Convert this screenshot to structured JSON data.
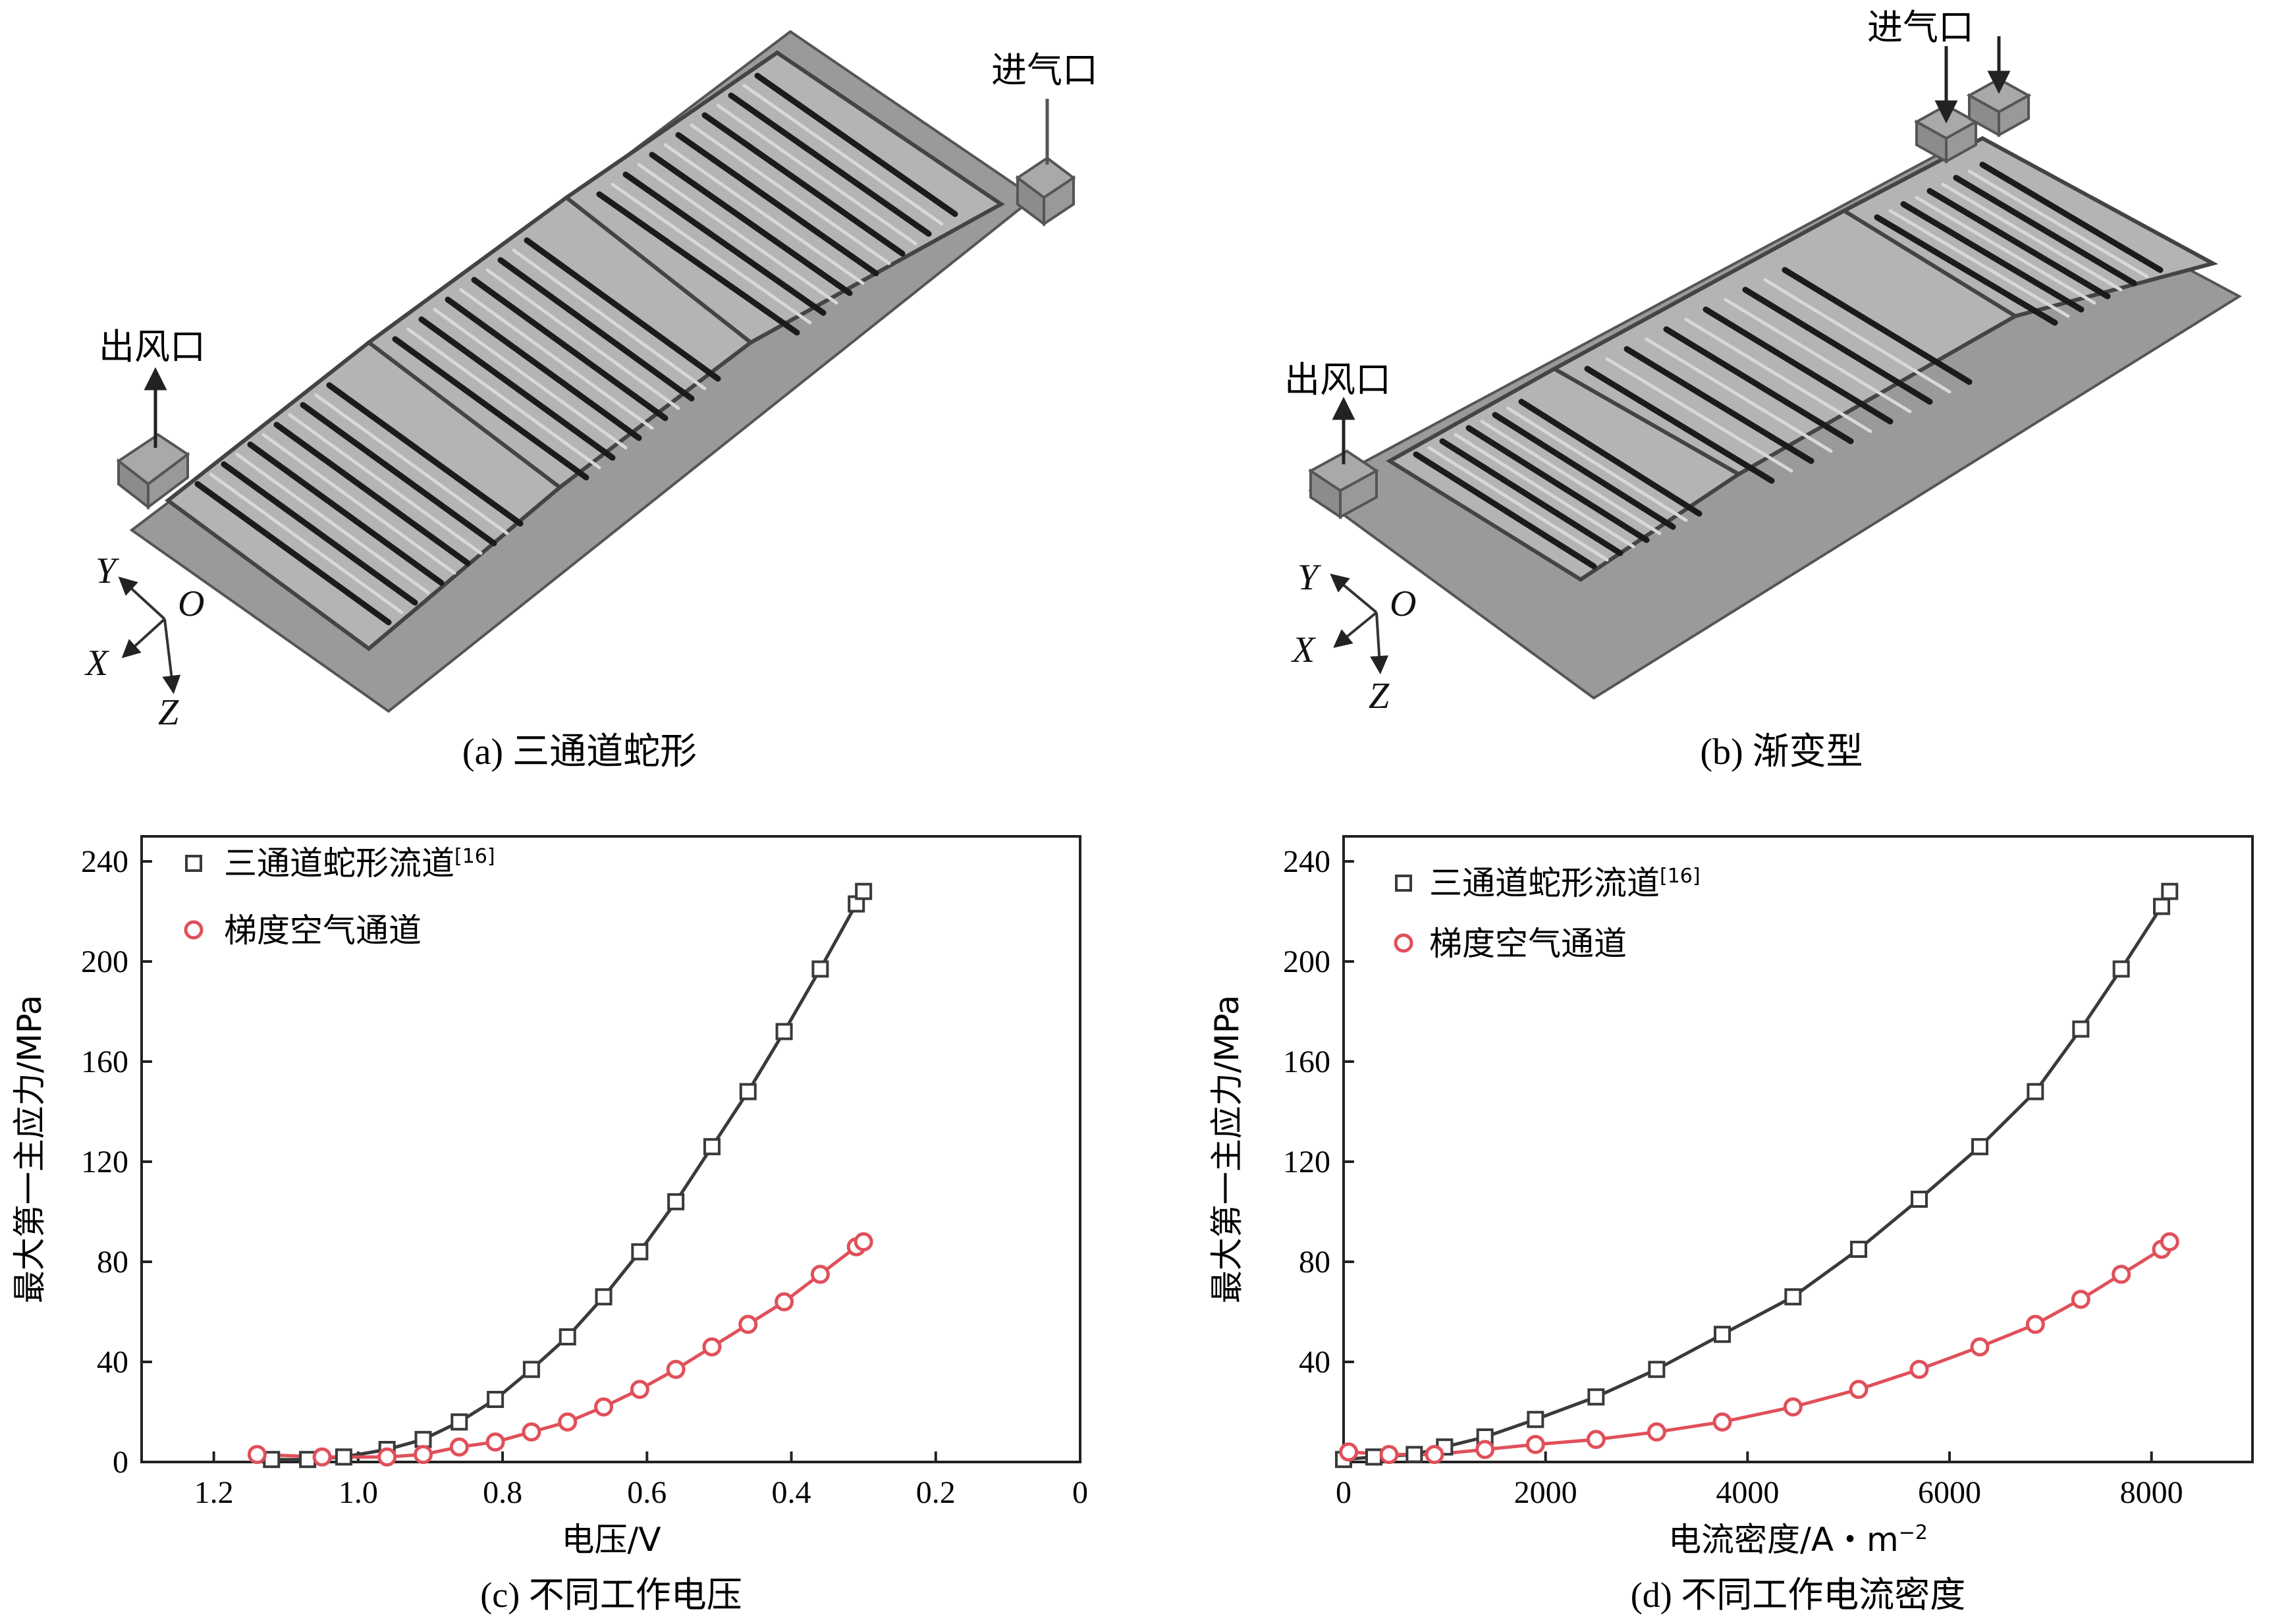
{
  "panel_a": {
    "caption": "(a) 三通道蛇形",
    "inlet_label": "进气口",
    "outlet_label": "出风口",
    "axes": {
      "y": "Y",
      "o": "O",
      "x": "X",
      "z": "Z"
    }
  },
  "panel_b": {
    "caption": "(b) 渐变型",
    "inlet_label": "进气口",
    "outlet_label": "出风口",
    "axes": {
      "y": "Y",
      "o": "O",
      "x": "X",
      "z": "Z"
    }
  },
  "chart_data": [
    {
      "type": "line",
      "caption": "(c) 不同工作电压",
      "xlabel": "电压/V",
      "ylabel": "最大第一主应力/MPa",
      "xlim": [
        1.3,
        0
      ],
      "ylim": [
        0,
        250
      ],
      "xticks": [
        1.2,
        1.0,
        0.8,
        0.6,
        0.4,
        0.2,
        0
      ],
      "xtick_labels": [
        "1.2",
        "1.0",
        "0.8",
        "0.6",
        "0.4",
        "0.2",
        "0"
      ],
      "yticks": [
        40,
        80,
        120,
        160,
        200,
        240
      ],
      "ytick_labels": [
        "40",
        "80",
        "120",
        "160",
        "200",
        "240"
      ],
      "extra_tick_label": "0",
      "legend": {
        "position": "top-left"
      },
      "series": [
        {
          "name": "三通道蛇形流道",
          "name_sup": "[16]",
          "color": "#3a3a3a",
          "marker": "square",
          "x": [
            1.12,
            1.07,
            1.02,
            0.96,
            0.91,
            0.86,
            0.81,
            0.76,
            0.71,
            0.66,
            0.61,
            0.56,
            0.51,
            0.46,
            0.41,
            0.36,
            0.31,
            0.3
          ],
          "y": [
            1,
            1,
            2,
            5,
            9,
            16,
            25,
            37,
            50,
            66,
            84,
            104,
            126,
            148,
            172,
            197,
            223,
            228
          ]
        },
        {
          "name": "梯度空气通道",
          "color": "#e0505a",
          "marker": "circle",
          "x": [
            1.14,
            1.05,
            0.96,
            0.91,
            0.86,
            0.81,
            0.76,
            0.71,
            0.66,
            0.61,
            0.56,
            0.51,
            0.46,
            0.41,
            0.36,
            0.31,
            0.3
          ],
          "y": [
            3,
            2,
            2,
            3,
            6,
            8,
            12,
            16,
            22,
            29,
            37,
            46,
            55,
            64,
            75,
            86,
            88
          ]
        }
      ]
    },
    {
      "type": "line",
      "caption": "(d) 不同工作电流密度",
      "xlabel": "电流密度/A・m",
      "xlabel_sup": "−2",
      "ylabel": "最大第一主应力/MPa",
      "xlim": [
        0,
        9000
      ],
      "ylim": [
        0,
        250
      ],
      "xticks": [
        0,
        2000,
        4000,
        6000,
        8000
      ],
      "xtick_labels": [
        "0",
        "2000",
        "4000",
        "6000",
        "8000"
      ],
      "yticks": [
        40,
        80,
        120,
        160,
        200,
        240
      ],
      "ytick_labels": [
        "40",
        "80",
        "120",
        "160",
        "200",
        "240"
      ],
      "legend": {
        "position": "top-left"
      },
      "series": [
        {
          "name": "三通道蛇形流道",
          "name_sup": "[16]",
          "color": "#3a3a3a",
          "marker": "square",
          "x": [
            0,
            300,
            700,
            1000,
            1400,
            1900,
            2500,
            3100,
            3750,
            4450,
            5100,
            5700,
            6300,
            6850,
            7300,
            7700,
            8100,
            8180
          ],
          "y": [
            1,
            2,
            3,
            6,
            10,
            17,
            26,
            37,
            51,
            66,
            85,
            105,
            126,
            148,
            173,
            197,
            222,
            228
          ]
        },
        {
          "name": "梯度空气通道",
          "color": "#e0505a",
          "marker": "circle",
          "x": [
            50,
            450,
            900,
            1400,
            1900,
            2500,
            3100,
            3750,
            4450,
            5100,
            5700,
            6300,
            6850,
            7300,
            7700,
            8100,
            8180
          ],
          "y": [
            4,
            3,
            3,
            5,
            7,
            9,
            12,
            16,
            22,
            29,
            37,
            46,
            55,
            65,
            75,
            85,
            88
          ]
        }
      ]
    }
  ]
}
